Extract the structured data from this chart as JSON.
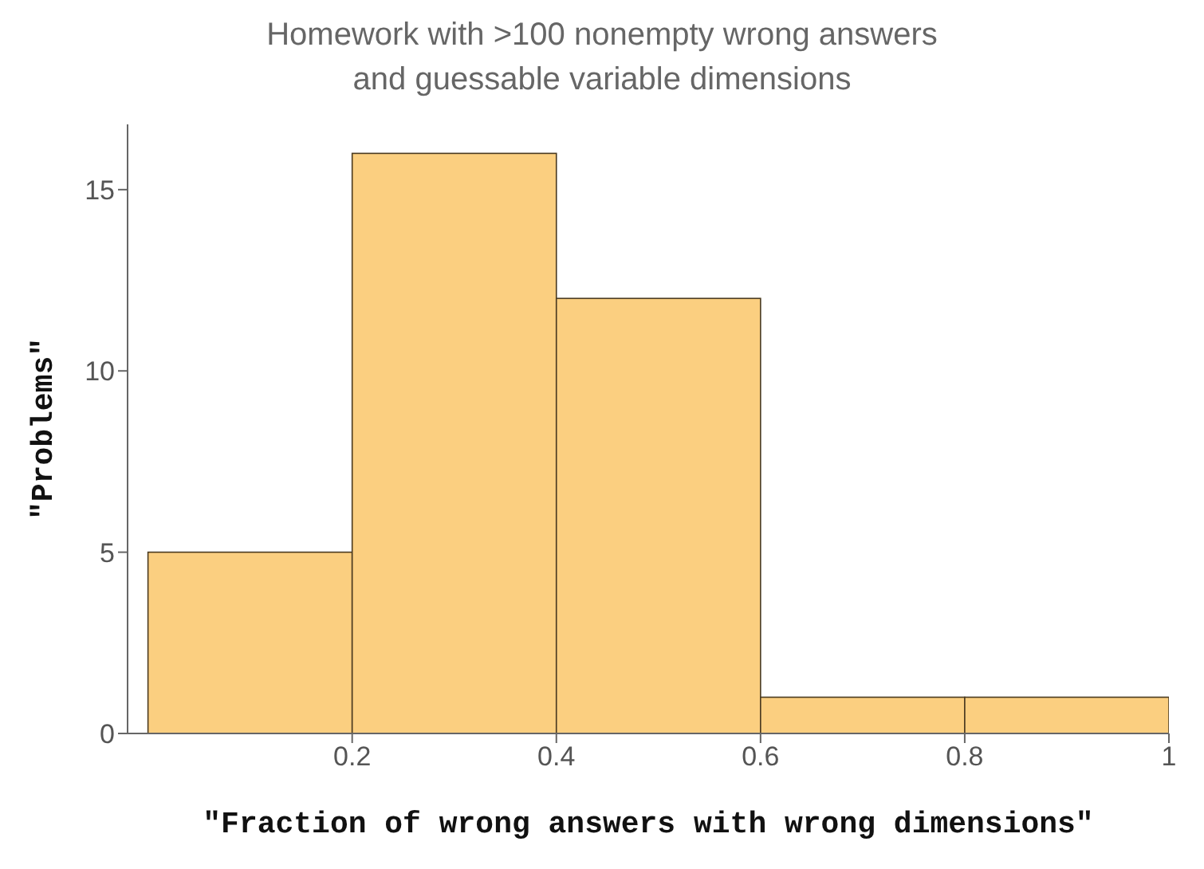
{
  "chart_data": {
    "type": "histogram",
    "title": "Homework with >100 nonempty wrong answers\nand guessable variable dimensions",
    "xlabel": "\"Fraction of wrong answers with wrong dimensions\"",
    "ylabel": "\"Problems\"",
    "bins": [
      0,
      0.2,
      0.4,
      0.6,
      0.8,
      1.0
    ],
    "values": [
      5,
      16,
      12,
      1,
      1
    ],
    "color": "#fbcf80",
    "xlim": [
      -0.02,
      1.0
    ],
    "xticks": [
      0.2,
      0.4,
      0.6,
      0.8,
      1.0
    ],
    "ylim": [
      0,
      16.8
    ],
    "yticks": [
      0,
      5,
      10,
      15
    ],
    "grid": false
  }
}
